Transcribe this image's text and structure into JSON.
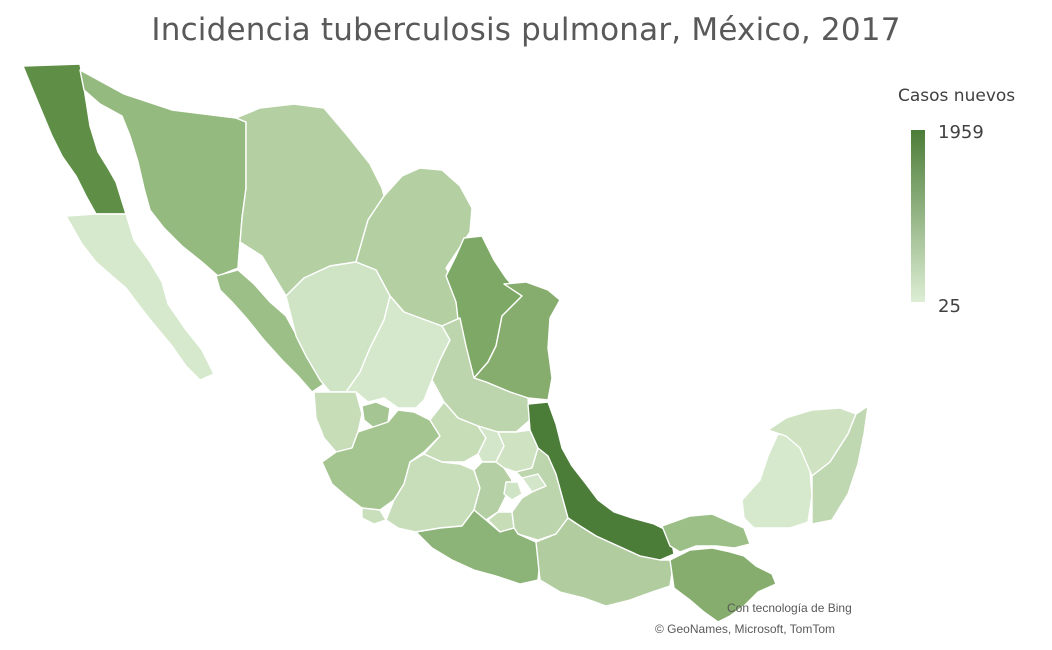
{
  "map": {
    "title": "Incidencia tuberculosis pulmonar, México, 2017",
    "legend": {
      "title": "Casos nuevos",
      "max_label": "1959",
      "min_label": "25",
      "max": 1959,
      "min": 25,
      "color_high": "#4c7d38",
      "color_low": "#ddeed4"
    },
    "attribution": {
      "line1": "Con tecnología de Bing",
      "line2": "© GeoNames, Microsoft, TomTom"
    },
    "regions": [
      {
        "name": "Baja California",
        "color": "#5f8f47"
      },
      {
        "name": "Baja California Sur",
        "color": "#d6e9cd"
      },
      {
        "name": "Sonora",
        "color": "#95ba80"
      },
      {
        "name": "Chihuahua",
        "color": "#b4d0a3"
      },
      {
        "name": "Coahuila",
        "color": "#b4d0a3"
      },
      {
        "name": "Nuevo León",
        "color": "#7ea866"
      },
      {
        "name": "Tamaulipas",
        "color": "#86ad6e"
      },
      {
        "name": "Sinaloa",
        "color": "#9bbf86"
      },
      {
        "name": "Durango",
        "color": "#cfe4c4"
      },
      {
        "name": "Zacatecas",
        "color": "#d5e8cc"
      },
      {
        "name": "San Luis Potosí",
        "color": "#bcd5ad"
      },
      {
        "name": "Nayarit",
        "color": "#c6ddb8"
      },
      {
        "name": "Aguascalientes",
        "color": "#a5c592"
      },
      {
        "name": "Jalisco",
        "color": "#a4c490"
      },
      {
        "name": "Colima",
        "color": "#c9dfbc"
      },
      {
        "name": "Michoacán",
        "color": "#c8deba"
      },
      {
        "name": "Guanajuato",
        "color": "#c6ddb8"
      },
      {
        "name": "Querétaro",
        "color": "#d3e6c9"
      },
      {
        "name": "Hidalgo",
        "color": "#cfe3c3"
      },
      {
        "name": "Estado de México",
        "color": "#b4cfa3"
      },
      {
        "name": "Ciudad de México",
        "color": "#cfe4c4"
      },
      {
        "name": "Morelos",
        "color": "#c6ddb8"
      },
      {
        "name": "Tlaxcala",
        "color": "#d3e6c9"
      },
      {
        "name": "Puebla",
        "color": "#bcd5ad"
      },
      {
        "name": "Veracruz",
        "color": "#4c7d38"
      },
      {
        "name": "Guerrero",
        "color": "#8db478"
      },
      {
        "name": "Oaxaca",
        "color": "#b1cd9f"
      },
      {
        "name": "Chiapas",
        "color": "#86ad6e"
      },
      {
        "name": "Tabasco",
        "color": "#9cbf87"
      },
      {
        "name": "Campeche",
        "color": "#d6e9cd"
      },
      {
        "name": "Yucatán",
        "color": "#cfe3c3"
      },
      {
        "name": "Quintana Roo",
        "color": "#c0d8b1"
      }
    ]
  }
}
